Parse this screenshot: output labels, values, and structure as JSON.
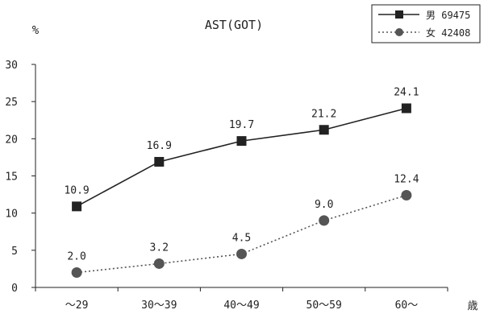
{
  "chart_data": {
    "type": "line",
    "title": "AST(GOT)",
    "ylabel": "%",
    "xlabel": "歳",
    "categories": [
      "～29",
      "30～39",
      "40～49",
      "50～59",
      "60～"
    ],
    "ylim": [
      0,
      30
    ],
    "yticks": [
      "0",
      "5",
      "10",
      "15",
      "20",
      "25",
      "30"
    ],
    "grid": false,
    "legend": "top-right",
    "series": [
      {
        "name": "男 69475",
        "values": [
          10.9,
          16.9,
          19.7,
          21.2,
          24.1
        ],
        "labels": [
          "10.9",
          "16.9",
          "19.7",
          "21.2",
          "24.1"
        ],
        "marker": "square",
        "line": "solid",
        "color": "#222222"
      },
      {
        "name": "女 42408",
        "values": [
          2.0,
          3.2,
          4.5,
          9.0,
          12.4
        ],
        "labels": [
          "2.0",
          "3.2",
          "4.5",
          "9.0",
          "12.4"
        ],
        "marker": "circle",
        "line": "dotted",
        "color": "#555555"
      }
    ]
  }
}
